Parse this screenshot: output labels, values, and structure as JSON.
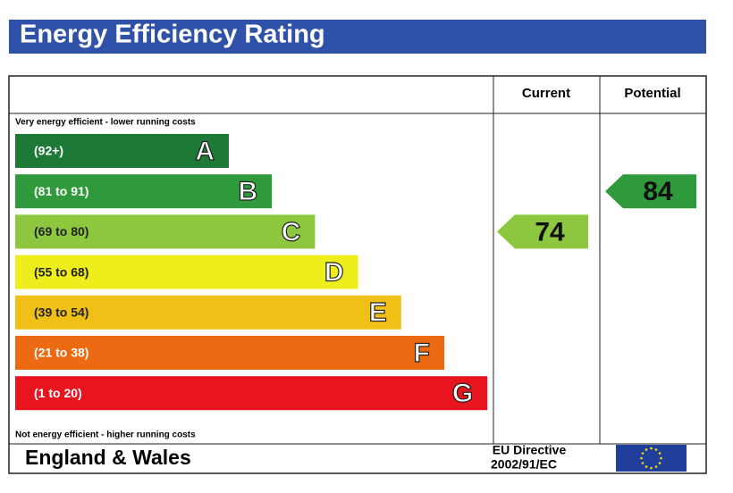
{
  "header": {
    "title": "Energy Efficiency Rating"
  },
  "columns": {
    "current": "Current",
    "potential": "Potential"
  },
  "top_note": "Very energy efficient - lower running costs",
  "bottom_note": "Not energy efficient - higher running costs",
  "bands": [
    {
      "range": "(92+)",
      "letter": "A",
      "color": "#1d7a36"
    },
    {
      "range": "(81 to 91)",
      "letter": "B",
      "color": "#2f9a3b"
    },
    {
      "range": "(69 to 80)",
      "letter": "C",
      "color": "#8dc63f"
    },
    {
      "range": "(55 to 68)",
      "letter": "D",
      "color": "#eeee1c"
    },
    {
      "range": "(39 to 54)",
      "letter": "E",
      "color": "#f0c016"
    },
    {
      "range": "(21 to 38)",
      "letter": "F",
      "color": "#ec6a12"
    },
    {
      "range": "(1 to 20)",
      "letter": "G",
      "color": "#e8141e"
    }
  ],
  "current": 74,
  "potential": 84,
  "footer": {
    "region": "England & Wales",
    "directive": [
      "EU Directive",
      "2002/91/EC"
    ]
  }
}
